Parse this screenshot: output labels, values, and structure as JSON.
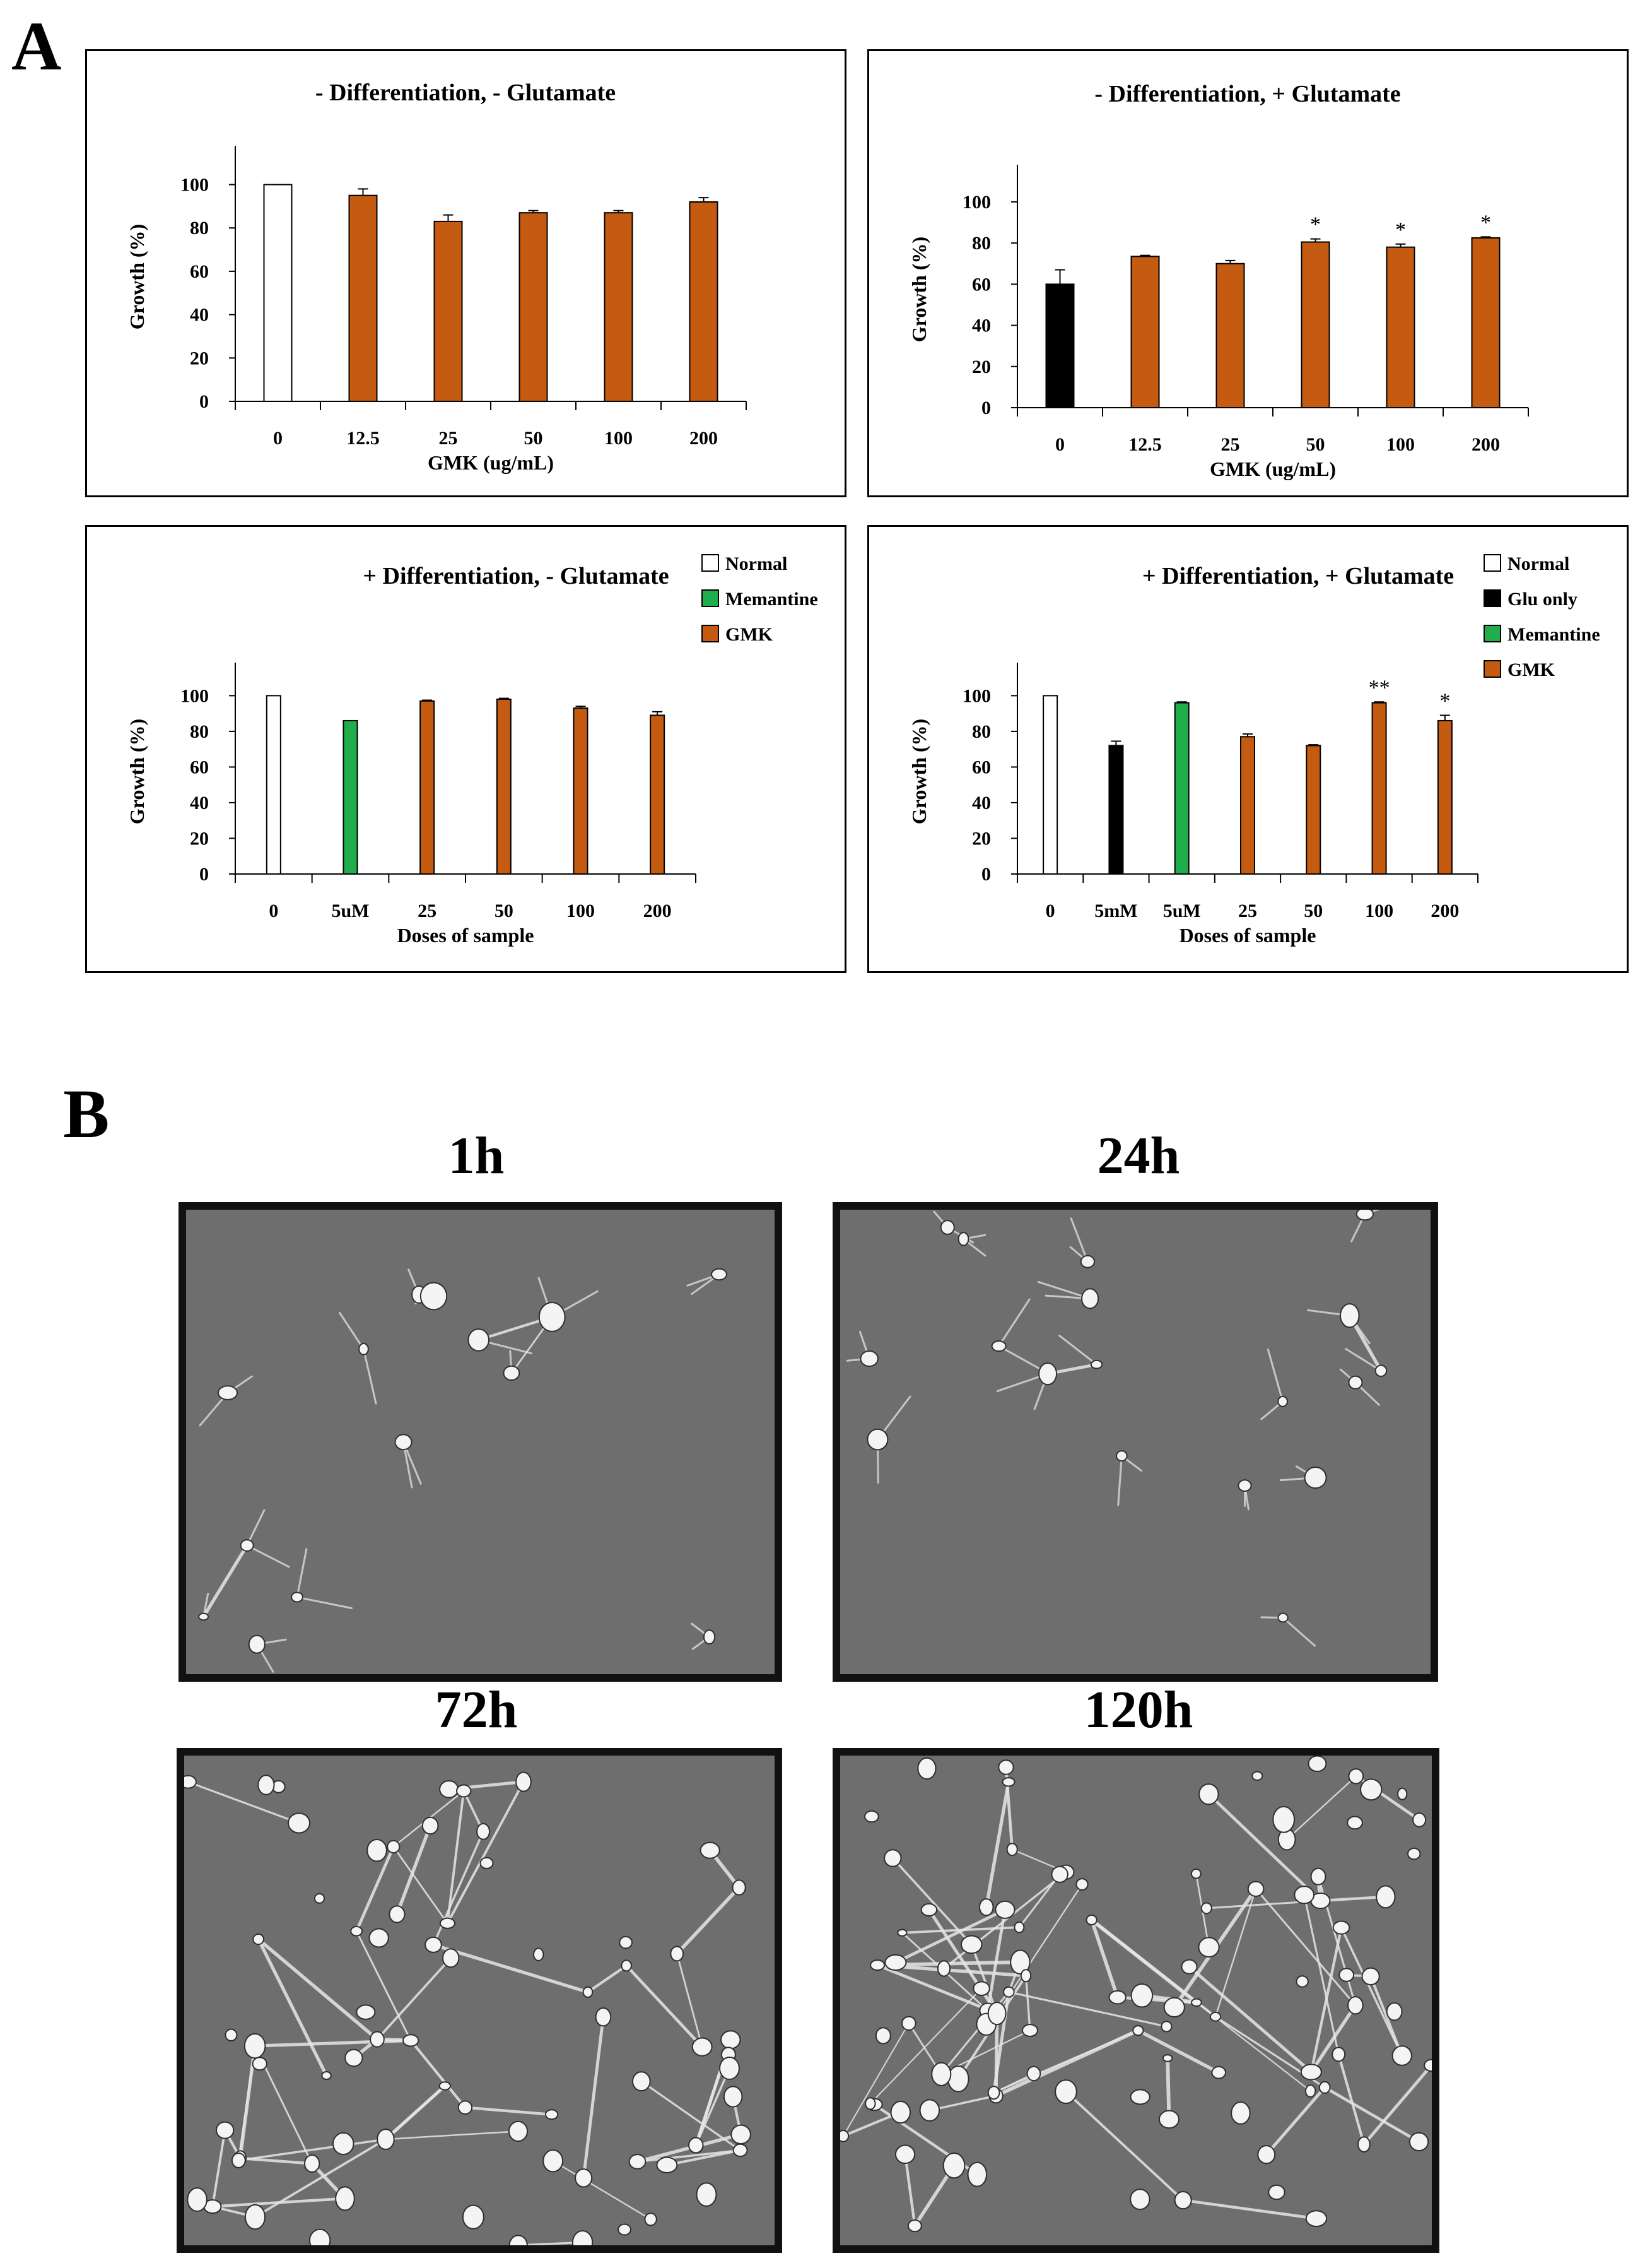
{
  "panel_a_label": "A",
  "panel_b_label": "B",
  "colors": {
    "gmk": "#c55a11",
    "memantine": "#1fae4b",
    "glu": "#000000",
    "normal": "#ffffff"
  },
  "chart_data": [
    {
      "type": "bar",
      "title": "- Differentiation, - Glutamate",
      "xlabel": "GMK (ug/mL)",
      "ylabel": "Growth (%)",
      "ylim": [
        0,
        100
      ],
      "yticks": [
        0,
        20,
        40,
        60,
        80,
        100
      ],
      "categories": [
        "0",
        "12.5",
        "25",
        "50",
        "100",
        "200"
      ],
      "values": [
        100,
        95,
        83,
        87,
        87,
        92
      ],
      "errors": [
        0,
        3,
        3,
        1,
        1,
        2
      ],
      "colors": [
        "#ffffff",
        "#c55a11",
        "#c55a11",
        "#c55a11",
        "#c55a11",
        "#c55a11"
      ],
      "significance": [
        "",
        "",
        "",
        "",
        "",
        ""
      ],
      "legend": []
    },
    {
      "type": "bar",
      "title": "- Differentiation, + Glutamate",
      "xlabel": "GMK (ug/mL)",
      "ylabel": "Growth (%)",
      "ylim": [
        0,
        100
      ],
      "yticks": [
        0,
        20,
        40,
        60,
        80,
        100
      ],
      "categories": [
        "0",
        "12.5",
        "25",
        "50",
        "100",
        "200"
      ],
      "values": [
        60,
        73.5,
        70,
        80.5,
        78,
        82.5
      ],
      "errors": [
        7,
        0.5,
        1.5,
        1.5,
        1.5,
        0.5
      ],
      "colors": [
        "#000000",
        "#c55a11",
        "#c55a11",
        "#c55a11",
        "#c55a11",
        "#c55a11"
      ],
      "significance": [
        "",
        "",
        "",
        "*",
        "*",
        "*"
      ],
      "legend": []
    },
    {
      "type": "bar",
      "title": "+ Differentiation, - Glutamate",
      "xlabel": "Doses of sample",
      "ylabel": "Growth (%)",
      "ylim": [
        0,
        100
      ],
      "yticks": [
        0,
        20,
        40,
        60,
        80,
        100
      ],
      "categories": [
        "0",
        "5uM",
        "25",
        "50",
        "100",
        "200"
      ],
      "values": [
        100,
        86,
        97,
        98,
        93,
        89
      ],
      "errors": [
        0,
        0,
        0.5,
        0.5,
        1,
        2
      ],
      "colors": [
        "#ffffff",
        "#1fae4b",
        "#c55a11",
        "#c55a11",
        "#c55a11",
        "#c55a11"
      ],
      "significance": [
        "",
        "",
        "",
        "",
        "",
        ""
      ],
      "legend": [
        {
          "label": "Normal",
          "color": "#ffffff"
        },
        {
          "label": "Memantine",
          "color": "#1fae4b"
        },
        {
          "label": "GMK",
          "color": "#c55a11"
        }
      ]
    },
    {
      "type": "bar",
      "title": "+ Differentiation, + Glutamate",
      "xlabel": "Doses of sample",
      "ylabel": "Growth (%)",
      "ylim": [
        0,
        100
      ],
      "yticks": [
        0,
        20,
        40,
        60,
        80,
        100
      ],
      "categories": [
        "0",
        "5mM",
        "5uM",
        "25",
        "50",
        "100",
        "200"
      ],
      "values": [
        100,
        72,
        96,
        77,
        72,
        96,
        86
      ],
      "errors": [
        0,
        2.5,
        0.5,
        1.5,
        0.5,
        0.5,
        3
      ],
      "colors": [
        "#ffffff",
        "#000000",
        "#1fae4b",
        "#c55a11",
        "#c55a11",
        "#c55a11",
        "#c55a11"
      ],
      "significance": [
        "",
        "",
        "",
        "",
        "",
        "**",
        "*"
      ],
      "legend": [
        {
          "label": "Normal",
          "color": "#ffffff"
        },
        {
          "label": "Glu only",
          "color": "#000000"
        },
        {
          "label": "Memantine",
          "color": "#1fae4b"
        },
        {
          "label": "GMK",
          "color": "#c55a11"
        }
      ]
    }
  ],
  "micrographs": [
    {
      "label": "1h"
    },
    {
      "label": "24h"
    },
    {
      "label": "72h"
    },
    {
      "label": "120h"
    }
  ]
}
